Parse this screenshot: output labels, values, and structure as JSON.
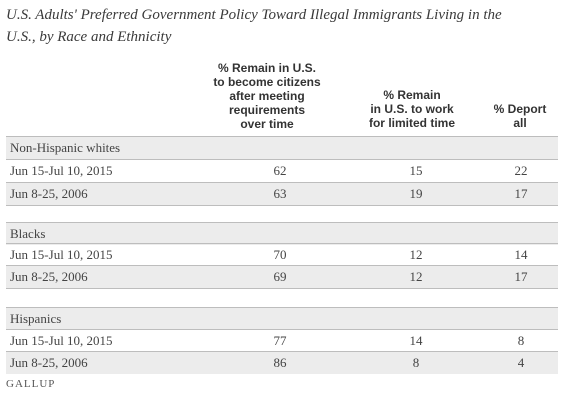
{
  "title_line1": "U.S. Adults' Preferred Government Policy Toward Illegal Immigrants Living in the",
  "title_line2": "U.S., by Race and Ethnicity",
  "headers": [
    [
      "% Remain in U.S.",
      "to become citizens",
      "after meeting",
      "requirements",
      "over time"
    ],
    [
      "% Remain",
      "in U.S. to work",
      "for limited time"
    ],
    [
      "% Deport",
      "all"
    ]
  ],
  "chart_data": {
    "type": "table",
    "title": "U.S. Adults' Preferred Government Policy Toward Illegal Immigrants Living in the U.S., by Race and Ethnicity",
    "columns": [
      "% Remain in U.S. to become citizens after meeting requirements over time",
      "% Remain in U.S. to work for limited time",
      "% Deport all"
    ],
    "groups": [
      {
        "name": "Non-Hispanic whites",
        "rows": [
          {
            "label": "Jun 15-Jul 10, 2015",
            "values": [
              62,
              15,
              22
            ]
          },
          {
            "label": "Jun 8-25, 2006",
            "values": [
              63,
              19,
              17
            ]
          }
        ]
      },
      {
        "name": "Blacks",
        "rows": [
          {
            "label": "Jun 15-Jul 10, 2015",
            "values": [
              70,
              12,
              14
            ]
          },
          {
            "label": "Jun 8-25, 2006",
            "values": [
              69,
              12,
              17
            ]
          }
        ]
      },
      {
        "name": "Hispanics",
        "rows": [
          {
            "label": "Jun 15-Jul 10, 2015",
            "values": [
              77,
              14,
              8
            ]
          },
          {
            "label": "Jun 8-25, 2006",
            "values": [
              86,
              8,
              4
            ]
          }
        ]
      }
    ]
  },
  "source_logo": "GALLUP"
}
